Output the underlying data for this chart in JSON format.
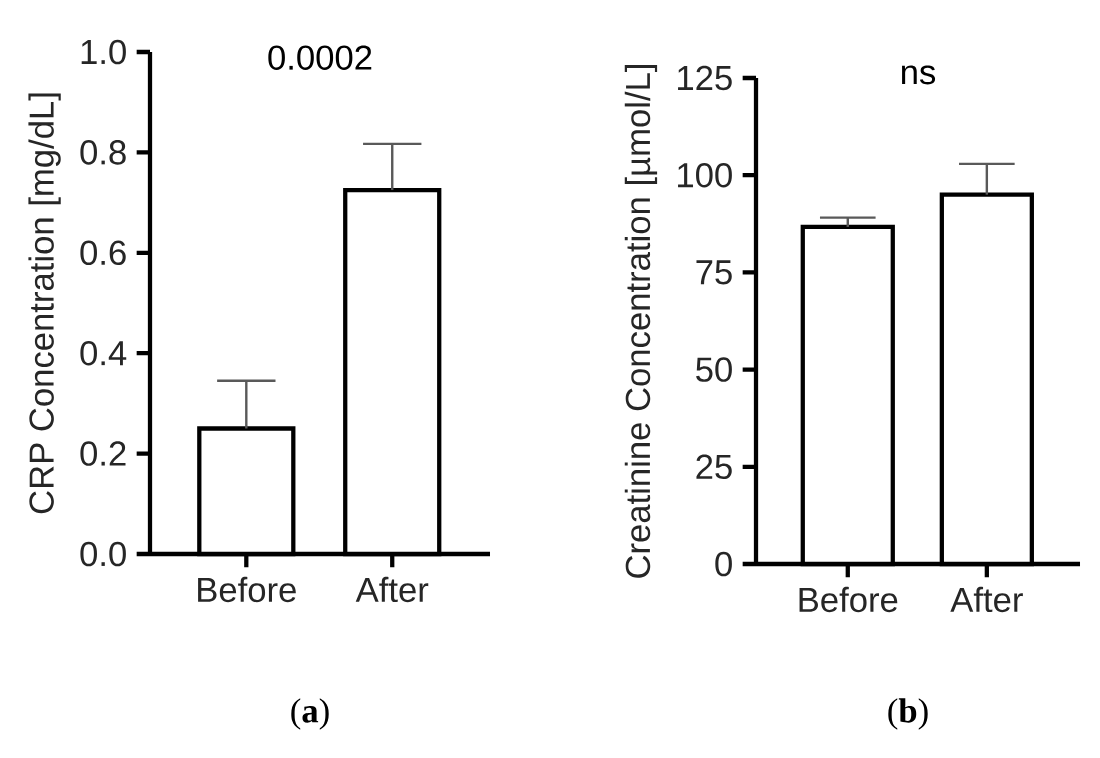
{
  "chart_data": [
    {
      "type": "bar",
      "categories": [
        "Before",
        "After"
      ],
      "values": [
        0.25,
        0.725
      ],
      "errors": [
        [
          0.25,
          0.345
        ],
        [
          0.725,
          0.817
        ]
      ],
      "color": "#ffffff",
      "ylabel": "CRP Concentration [mg/dL]",
      "ylim": [
        0,
        1
      ],
      "yticks": [
        {
          "value": 0,
          "label": "0.0"
        },
        {
          "value": 0.2,
          "label": "0.2"
        },
        {
          "value": 0.4,
          "label": "0.4"
        },
        {
          "value": 0.6,
          "label": "0.6"
        },
        {
          "value": 0.8,
          "label": "0.8"
        },
        {
          "value": 1,
          "label": "1.0"
        }
      ],
      "annotations": [
        "0.0002",
        "(**a**)"
      ]
    },
    {
      "type": "bar",
      "categories": [
        "Before",
        "After"
      ],
      "values": [
        86.7,
        95
      ],
      "errors": [
        [
          86.7,
          89.1
        ],
        [
          95,
          102.9
        ]
      ],
      "color": "#ffffff",
      "ylabel": "Creatinine Concentration [µmol/L]",
      "ylim": [
        0,
        125
      ],
      "yticks": [
        0,
        25,
        50,
        75,
        100,
        125
      ],
      "annotations": [
        "ns",
        "(**b**)"
      ]
    }
  ]
}
